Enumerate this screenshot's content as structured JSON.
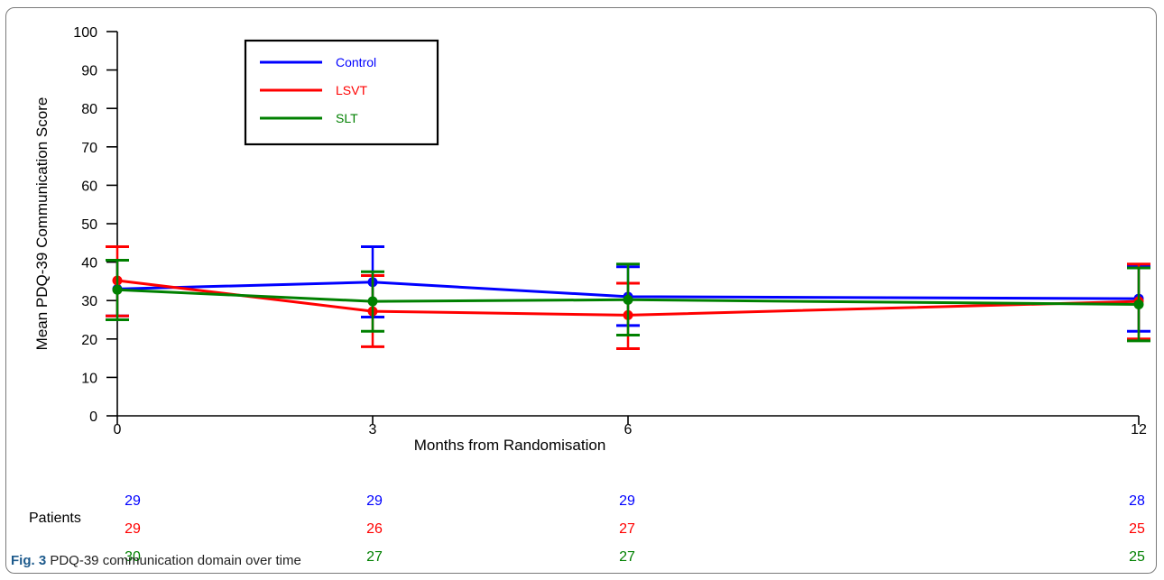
{
  "chart_data": {
    "type": "line",
    "xlabel": "Months from Randomisation",
    "ylabel": "Mean PDQ-39 Communication Score",
    "x": [
      0,
      3,
      6,
      12
    ],
    "x_tick_labels": [
      "0",
      "3",
      "6",
      "12"
    ],
    "xlim": [
      0,
      12
    ],
    "ylim": [
      0,
      100
    ],
    "y_ticks": [
      0,
      10,
      20,
      30,
      40,
      50,
      60,
      70,
      80,
      90,
      100
    ],
    "grid": false,
    "legend_position": "top-left",
    "series": [
      {
        "name": "Control",
        "color": "#0000ff",
        "values": [
          33,
          34.8,
          31,
          30.5
        ],
        "lower": [
          26,
          25.7,
          23.5,
          22
        ],
        "upper": [
          40.5,
          44,
          38.8,
          39
        ]
      },
      {
        "name": "LSVT",
        "color": "#ff0000",
        "values": [
          35.2,
          27.2,
          26.2,
          29.8
        ],
        "lower": [
          26,
          18,
          17.5,
          20
        ],
        "upper": [
          44,
          36.5,
          34.5,
          39.5
        ]
      },
      {
        "name": "SLT",
        "color": "#008000",
        "values": [
          32.8,
          29.8,
          30.2,
          29
        ],
        "lower": [
          25,
          22,
          21,
          19.5
        ],
        "upper": [
          40.5,
          37.5,
          39.5,
          38.5
        ]
      }
    ],
    "patients_label": "Patients",
    "patients": [
      {
        "series": "Control",
        "counts": [
          "29",
          "29",
          "29",
          "28"
        ]
      },
      {
        "series": "LSVT",
        "counts": [
          "29",
          "26",
          "27",
          "25"
        ]
      },
      {
        "series": "SLT",
        "counts": [
          "30",
          "27",
          "27",
          "25"
        ]
      }
    ]
  },
  "caption": {
    "label": "Fig. 3",
    "text": "PDQ-39 communication domain over time"
  }
}
